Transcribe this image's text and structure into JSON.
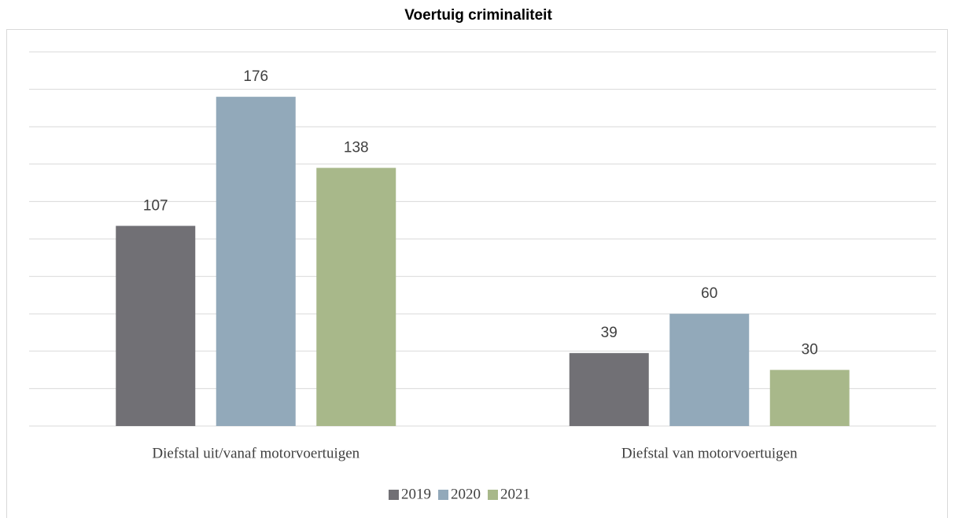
{
  "chart_data": {
    "type": "bar",
    "title": "Voertuig criminaliteit",
    "categories": [
      "Diefstal uit/vanaf motorvoertuigen",
      "Diefstal van motorvoertuigen"
    ],
    "series": [
      {
        "name": "2019",
        "color": "#717075",
        "values": [
          107,
          39
        ]
      },
      {
        "name": "2020",
        "color": "#92a9ba",
        "values": [
          176,
          60
        ]
      },
      {
        "name": "2021",
        "color": "#a8b88a",
        "values": [
          138,
          30
        ]
      }
    ],
    "ylim": [
      0,
      200
    ],
    "yticks": [
      0,
      20,
      40,
      60,
      80,
      100,
      120,
      140,
      160,
      180,
      200
    ],
    "grid": true,
    "legend": "bottom"
  }
}
